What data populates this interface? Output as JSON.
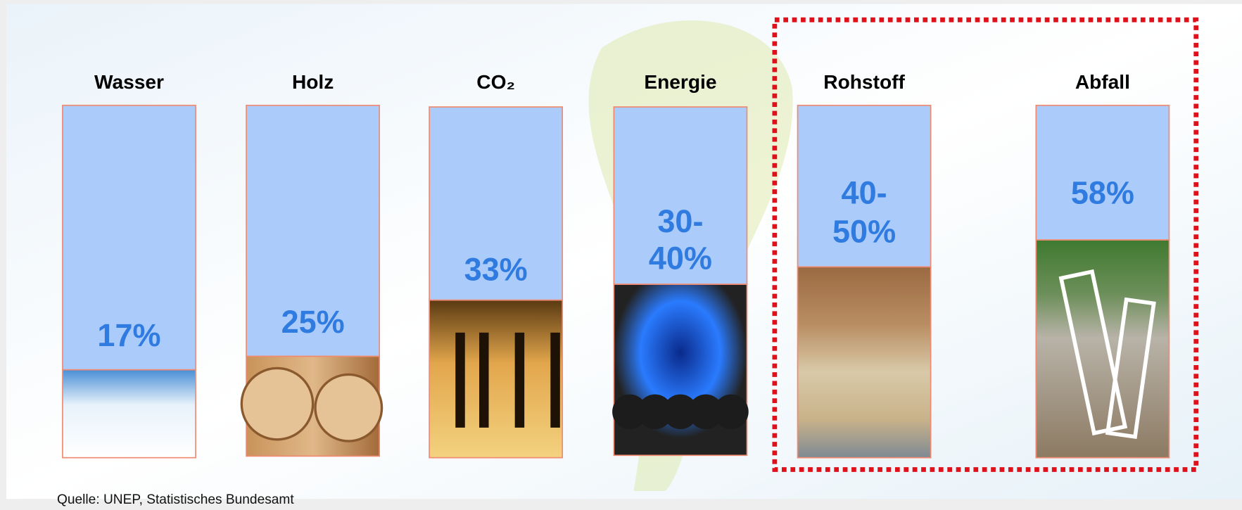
{
  "columns": [
    {
      "label": "Wasser",
      "value_lines": [
        "17%"
      ]
    },
    {
      "label": "Holz",
      "value_lines": [
        "25%"
      ]
    },
    {
      "label": "CO₂",
      "value_lines": [
        "33%"
      ]
    },
    {
      "label": "Energie",
      "value_lines": [
        "30-",
        "40%"
      ]
    },
    {
      "label": "Rohstoff",
      "value_lines": [
        "40-",
        "50%"
      ]
    },
    {
      "label": "Abfall",
      "value_lines": [
        "58%"
      ]
    }
  ],
  "source": "Quelle:  UNEP, Statistisches Bundesamt"
}
